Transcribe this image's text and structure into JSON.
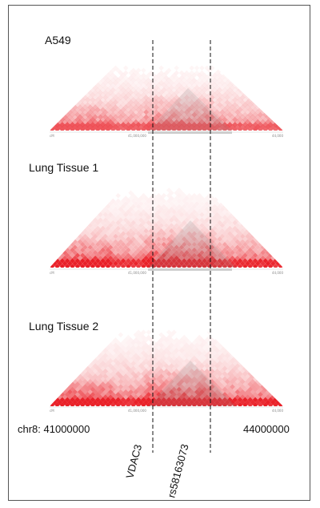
{
  "panels": [
    {
      "label": "A549",
      "intensity": 0.75
    },
    {
      "label": "Lung Tissue 1",
      "intensity": 1.0
    },
    {
      "label": "Lung Tissue 2",
      "intensity": 1.05
    }
  ],
  "axis": {
    "start_label": "chr8: 41000000",
    "end_label": "44000000",
    "tick_labels": [
      "cM",
      "41,000,000",
      "44,000"
    ]
  },
  "markers": [
    {
      "label": "VDAC3"
    },
    {
      "label": "rs58163073"
    }
  ],
  "colors": {
    "contact": "#e8141c",
    "highlight": "#8c8c8c",
    "border": "#555555",
    "marker_line": "#111111"
  }
}
